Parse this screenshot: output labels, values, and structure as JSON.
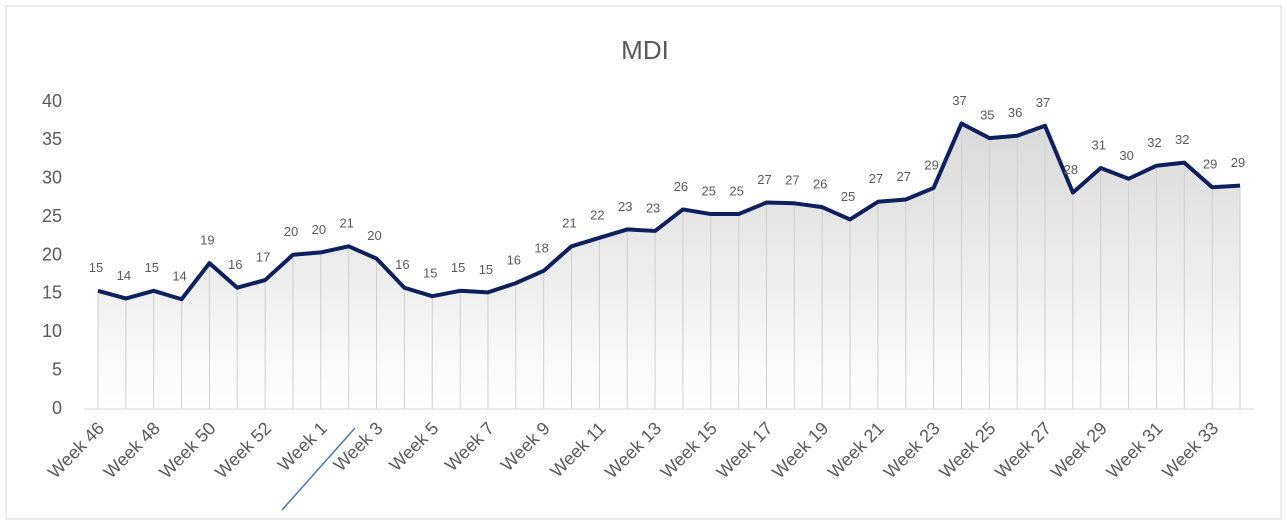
{
  "chart_data": {
    "type": "line",
    "title": "MDI",
    "categories": [
      "Week 46",
      null,
      "Week 48",
      null,
      "Week 50",
      null,
      "Week 52",
      null,
      "Week 1",
      null,
      "Week 3",
      null,
      "Week 5",
      null,
      "Week 7",
      null,
      "Week 9",
      null,
      "Week 11",
      null,
      "Week 13",
      null,
      "Week 15",
      null,
      "Week 17",
      null,
      "Week 19",
      null,
      "Week 21",
      null,
      "Week 23",
      null,
      "Week 25",
      null,
      "Week 27",
      null,
      "Week 29",
      null,
      "Week 31",
      null,
      "Week 33",
      null
    ],
    "values": [
      15.4,
      14.4,
      15.4,
      14.3,
      19,
      15.8,
      16.8,
      20.1,
      20.4,
      21.2,
      19.6,
      15.8,
      14.7,
      15.4,
      15.2,
      16.4,
      18,
      21.2,
      22.3,
      23.4,
      23.2,
      26,
      25.4,
      25.4,
      26.9,
      26.8,
      26.3,
      24.7,
      27,
      27.3,
      28.8,
      37.2,
      35.3,
      35.6,
      36.9,
      28.2,
      31.4,
      30,
      31.7,
      32.1,
      28.9,
      29.1
    ],
    "value_labels": [
      "15",
      "14",
      "15",
      "14",
      "19",
      "16",
      "17",
      "20",
      "20",
      "21",
      "20",
      "16",
      "15",
      "15",
      "15",
      "16",
      "18",
      "21",
      "22",
      "23",
      "23",
      "26",
      "25",
      "25",
      "27",
      "27",
      "26",
      "25",
      "27",
      "27",
      "29",
      "37",
      "35",
      "36",
      "37",
      "28",
      "31",
      "30",
      "32",
      "32",
      "29",
      "29"
    ],
    "color": "#0d1f5c",
    "ylim": [
      0,
      40
    ],
    "yticks": [
      0,
      5,
      10,
      15,
      20,
      25,
      30,
      35,
      40
    ]
  }
}
